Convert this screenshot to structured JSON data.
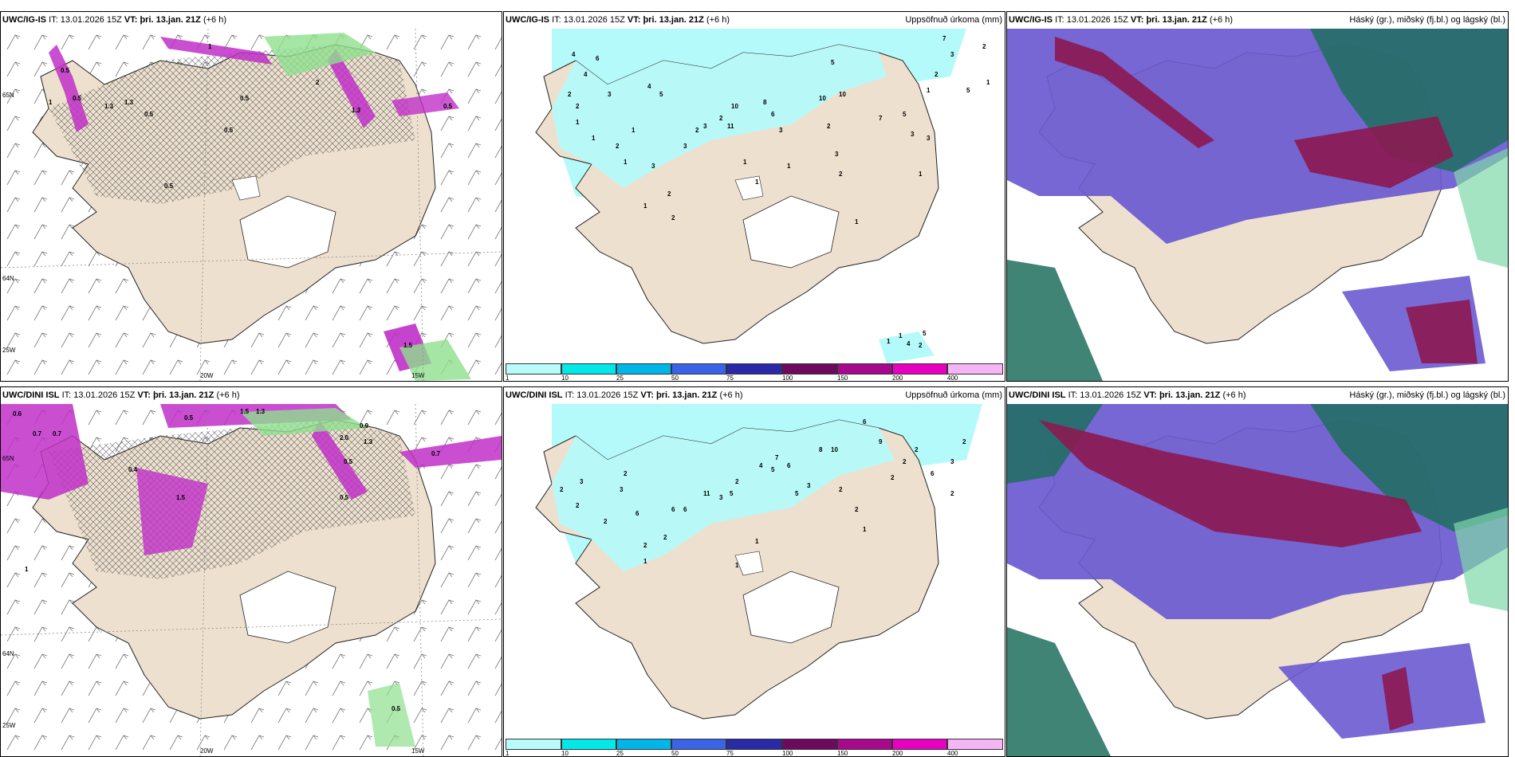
{
  "rows": [
    {
      "model": "UWC/IG-IS",
      "it_label": "IT:",
      "it_value": "13.01.2026 15Z",
      "vt_label": "VT:",
      "vt_value": "þri. 13.jan. 21Z",
      "lead": "(+6 h)"
    },
    {
      "model": "UWC/DINI ISL",
      "it_label": "IT:",
      "it_value": "13.01.2026 15Z",
      "vt_label": "VT:",
      "vt_value": "þri. 13.jan. 21Z",
      "lead": "(+6 h)"
    }
  ],
  "panel_titles": {
    "wind": "",
    "precip": "Uppsöfnuð úrkoma (mm)",
    "cloud": "Háský (gr.), miðský (fj.bl.) og lágský (bl.)"
  },
  "axis_labels": {
    "lat65": "65N",
    "lat64": "64N",
    "lon25": "25W",
    "lon20": "20W",
    "lon15": "15W"
  },
  "colorbar": {
    "ticks": [
      "1",
      "10",
      "25",
      "50",
      "75",
      "100",
      "150",
      "200",
      "400"
    ],
    "colors": [
      "#b7fbfb",
      "#00e8e8",
      "#00b5e8",
      "#3a63e8",
      "#2a2aa8",
      "#6e0a5e",
      "#a8088c",
      "#e800c0",
      "#f5b5f5"
    ]
  },
  "map_colors": {
    "land": "#ede0cf",
    "snow_light": "#b5fafa",
    "precip_magenta": "#c030c8",
    "precip_green": "#8ee08e",
    "cloud_high": "#1e6e5e",
    "cloud_mid": "#6a5ad0",
    "cloud_low": "#8c1850"
  },
  "precip_labels_top": [
    "4",
    "4",
    "6",
    "2",
    "2",
    "3",
    "1",
    "1",
    "2",
    "1",
    "1",
    "1",
    "3",
    "2",
    "4",
    "5",
    "2",
    "3",
    "2",
    "3",
    "2",
    "11",
    "10",
    "8",
    "6",
    "3",
    "10",
    "5",
    "10",
    "7",
    "3",
    "2",
    "2",
    "1",
    "1",
    "1",
    "1",
    "3",
    "1",
    "1",
    "2",
    "7",
    "5",
    "2",
    "5",
    "1",
    "3",
    "1",
    "5",
    "4",
    "2",
    "1",
    "3"
  ],
  "precip_labels_bottom": [
    "2",
    "3",
    "2",
    "3",
    "6",
    "6",
    "2",
    "2",
    "2",
    "2",
    "6",
    "11",
    "3",
    "5",
    "2",
    "4",
    "5",
    "7",
    "6",
    "3",
    "5",
    "8",
    "10",
    "6",
    "9",
    "2",
    "2",
    "2",
    "2",
    "1",
    "1",
    "1",
    "1",
    "2",
    "6",
    "3",
    "2",
    "2"
  ],
  "wind_labels_top": [
    "0.5",
    "0.5",
    "0.5",
    "1",
    "2",
    "1.3",
    "0.5",
    "0.5",
    "1.3",
    "0.5",
    "1.5",
    "1",
    "1.3",
    "0.5"
  ],
  "wind_labels_bottom": [
    "0.6",
    "0.7",
    "0.5",
    "0.7",
    "1.5",
    "1.3",
    "0.5",
    "2.0",
    "1.3",
    "0.9",
    "0.4",
    "1.5",
    "0.5",
    "0.7",
    "1",
    "0.5"
  ]
}
